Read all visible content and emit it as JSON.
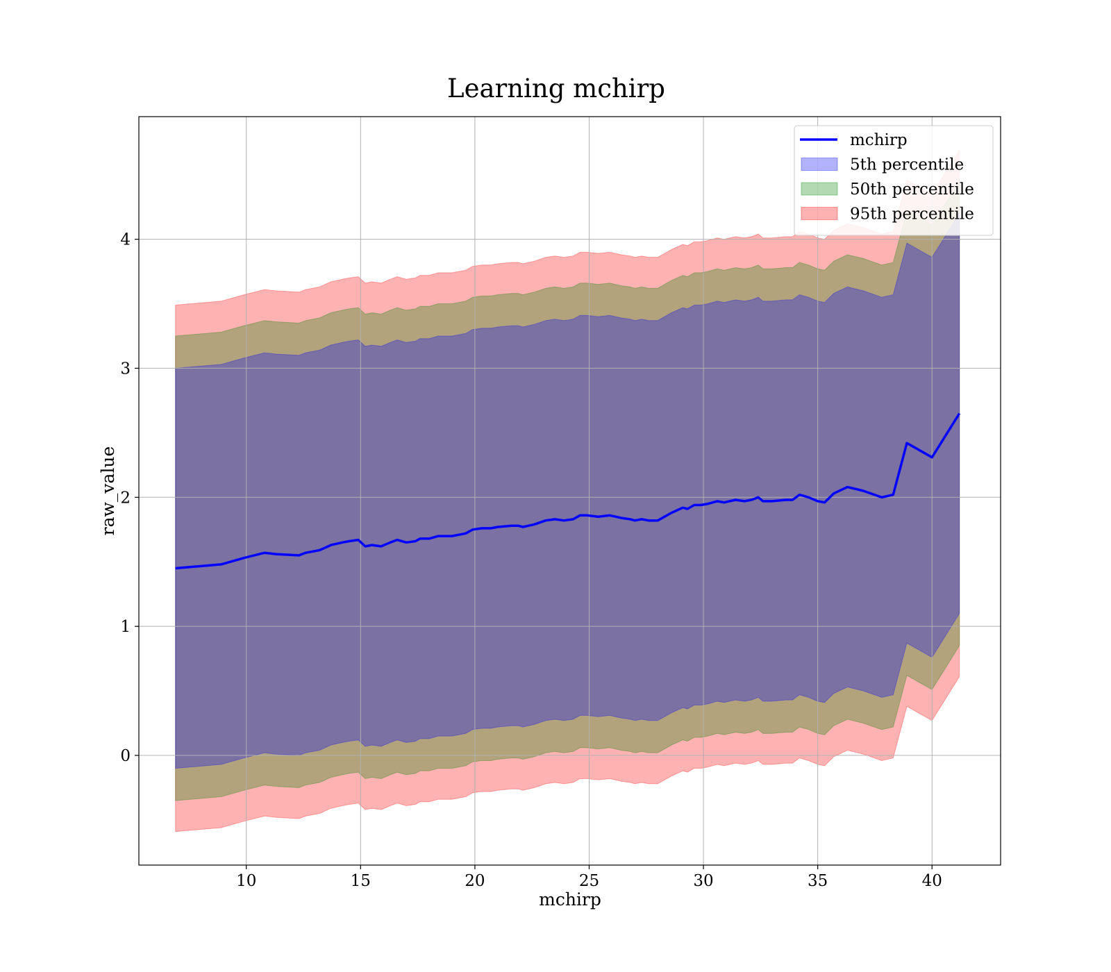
{
  "chart_data": {
    "type": "area",
    "title": "Learning mchirp",
    "xlabel": "mchirp",
    "ylabel": "raw_value",
    "xlim": [
      5.3,
      43.0
    ],
    "ylim": [
      -0.85,
      4.95
    ],
    "xticks": [
      10,
      15,
      20,
      25,
      30,
      35,
      40
    ],
    "yticks": [
      0,
      1,
      2,
      3,
      4
    ],
    "grid": true,
    "legend_position": "top-right",
    "x": [
      6.9,
      8.9,
      9.9,
      10.8,
      11.3,
      12.3,
      12.6,
      13.2,
      13.7,
      14.2,
      14.5,
      14.9,
      15.2,
      15.5,
      15.9,
      16.3,
      16.6,
      17.0,
      17.4,
      17.6,
      18.0,
      18.4,
      19.0,
      19.6,
      19.9,
      20.3,
      20.7,
      21.0,
      21.6,
      21.9,
      22.1,
      22.6,
      23.1,
      23.5,
      23.9,
      24.3,
      24.6,
      24.9,
      25.4,
      25.9,
      26.4,
      26.8,
      27.0,
      27.3,
      27.6,
      28.0,
      28.3,
      28.6,
      29.1,
      29.3,
      29.6,
      29.9,
      30.2,
      30.6,
      30.9,
      31.4,
      31.8,
      32.1,
      32.4,
      32.6,
      33.0,
      33.6,
      33.9,
      34.2,
      34.6,
      35.0,
      35.3,
      35.7,
      36.3,
      37.0,
      37.8,
      38.3,
      38.9,
      40.0,
      41.2
    ],
    "series": [
      {
        "name": "mchirp",
        "kind": "line",
        "color": "#0000ff",
        "values": [
          1.45,
          1.48,
          1.53,
          1.57,
          1.56,
          1.55,
          1.57,
          1.59,
          1.63,
          1.65,
          1.66,
          1.67,
          1.62,
          1.63,
          1.62,
          1.65,
          1.67,
          1.65,
          1.66,
          1.68,
          1.68,
          1.7,
          1.7,
          1.72,
          1.75,
          1.76,
          1.76,
          1.77,
          1.78,
          1.78,
          1.77,
          1.79,
          1.82,
          1.83,
          1.82,
          1.83,
          1.86,
          1.86,
          1.85,
          1.86,
          1.84,
          1.83,
          1.82,
          1.83,
          1.82,
          1.82,
          1.85,
          1.88,
          1.92,
          1.91,
          1.94,
          1.94,
          1.95,
          1.97,
          1.96,
          1.98,
          1.97,
          1.98,
          2.0,
          1.97,
          1.97,
          1.98,
          1.98,
          2.02,
          2.0,
          1.97,
          1.96,
          2.03,
          2.08,
          2.05,
          2.0,
          2.02,
          2.42,
          2.31,
          2.65
        ]
      },
      {
        "name": "5th percentile",
        "kind": "band",
        "color": "#0000ff",
        "half_width": 1.55
      },
      {
        "name": "50th percentile",
        "kind": "band",
        "color": "#008000",
        "half_width": 1.8
      },
      {
        "name": "95th percentile",
        "kind": "band",
        "color": "#ff0000",
        "half_width": 2.04
      }
    ]
  }
}
